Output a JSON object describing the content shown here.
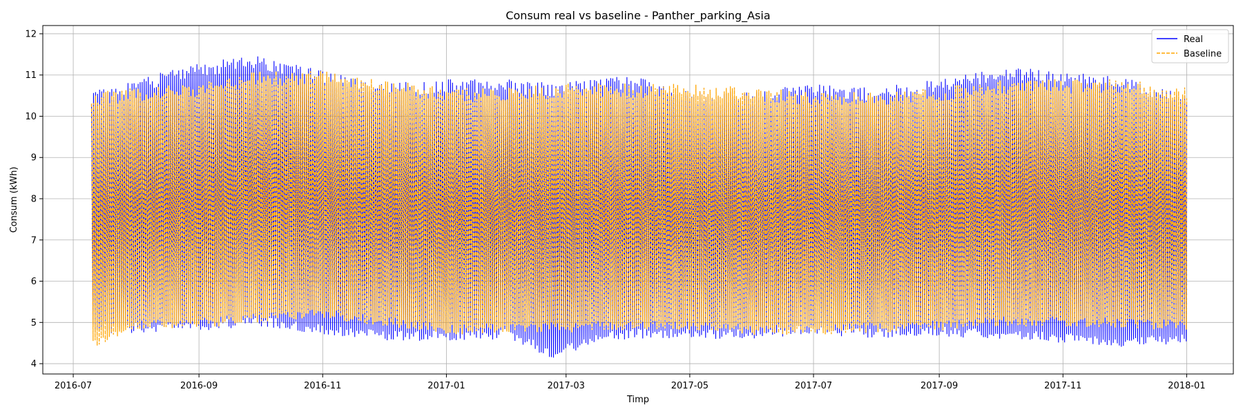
{
  "chart_data": {
    "type": "line",
    "title": "Consum real vs baseline - Panther_parking_Asia",
    "xlabel": "Timp",
    "ylabel": "Consum (kWh)",
    "x_range": [
      "2016-07-10",
      "2018-01-01"
    ],
    "xlim": [
      "2016-06-16",
      "2018-01-24"
    ],
    "ylim": [
      3.75,
      12.2
    ],
    "x_ticks": [
      "2016-07",
      "2016-09",
      "2016-11",
      "2017-01",
      "2017-03",
      "2017-05",
      "2017-07",
      "2017-09",
      "2017-11",
      "2018-01"
    ],
    "y_ticks": [
      4,
      5,
      6,
      7,
      8,
      9,
      10,
      11,
      12
    ],
    "grid": true,
    "legend_position": "top-right",
    "series": [
      {
        "name": "Real",
        "color": "#0000ff",
        "style": "solid",
        "envelope": [
          {
            "date": "2016-07-10",
            "min": 4.7,
            "max": 10.6
          },
          {
            "date": "2016-08-01",
            "min": 4.75,
            "max": 10.9
          },
          {
            "date": "2016-09-01",
            "min": 4.8,
            "max": 11.3
          },
          {
            "date": "2016-10-01",
            "min": 4.9,
            "max": 11.5
          },
          {
            "date": "2016-11-01",
            "min": 4.7,
            "max": 11.1
          },
          {
            "date": "2016-12-01",
            "min": 4.55,
            "max": 10.8
          },
          {
            "date": "2017-01-01",
            "min": 4.55,
            "max": 10.9
          },
          {
            "date": "2017-02-01",
            "min": 4.6,
            "max": 10.9
          },
          {
            "date": "2017-02-23",
            "min": 4.1,
            "max": 10.8
          },
          {
            "date": "2017-03-15",
            "min": 4.5,
            "max": 10.9
          },
          {
            "date": "2017-04-01",
            "min": 4.6,
            "max": 11.0
          },
          {
            "date": "2017-05-01",
            "min": 4.6,
            "max": 10.6
          },
          {
            "date": "2017-06-01",
            "min": 4.6,
            "max": 10.6
          },
          {
            "date": "2017-07-01",
            "min": 4.7,
            "max": 10.8
          },
          {
            "date": "2017-08-01",
            "min": 4.6,
            "max": 10.7
          },
          {
            "date": "2017-09-01",
            "min": 4.65,
            "max": 10.9
          },
          {
            "date": "2017-10-01",
            "min": 4.6,
            "max": 11.2
          },
          {
            "date": "2017-11-01",
            "min": 4.5,
            "max": 11.1
          },
          {
            "date": "2017-12-01",
            "min": 4.4,
            "max": 11.0
          },
          {
            "date": "2018-01-01",
            "min": 4.5,
            "max": 10.5
          }
        ]
      },
      {
        "name": "Baseline",
        "color": "#ffa500",
        "style": "dashed",
        "envelope": [
          {
            "date": "2016-07-10",
            "min": 4.3,
            "max": 10.6
          },
          {
            "date": "2016-08-01",
            "min": 4.8,
            "max": 10.7
          },
          {
            "date": "2016-09-01",
            "min": 4.85,
            "max": 10.8
          },
          {
            "date": "2016-10-01",
            "min": 5.0,
            "max": 11.1
          },
          {
            "date": "2016-11-01",
            "min": 5.1,
            "max": 11.1
          },
          {
            "date": "2016-12-01",
            "min": 4.9,
            "max": 10.9
          },
          {
            "date": "2017-01-01",
            "min": 4.7,
            "max": 10.7
          },
          {
            "date": "2017-02-01",
            "min": 4.75,
            "max": 10.7
          },
          {
            "date": "2017-03-01",
            "min": 4.75,
            "max": 10.8
          },
          {
            "date": "2017-04-01",
            "min": 4.8,
            "max": 10.8
          },
          {
            "date": "2017-05-01",
            "min": 4.8,
            "max": 10.8
          },
          {
            "date": "2017-06-01",
            "min": 4.7,
            "max": 10.7
          },
          {
            "date": "2017-07-01",
            "min": 4.7,
            "max": 10.6
          },
          {
            "date": "2017-08-01",
            "min": 4.75,
            "max": 10.6
          },
          {
            "date": "2017-09-01",
            "min": 4.8,
            "max": 10.7
          },
          {
            "date": "2017-10-01",
            "min": 4.9,
            "max": 10.9
          },
          {
            "date": "2017-11-01",
            "min": 4.9,
            "max": 10.9
          },
          {
            "date": "2017-12-01",
            "min": 4.85,
            "max": 10.9
          },
          {
            "date": "2018-01-01",
            "min": 4.8,
            "max": 10.7
          }
        ]
      }
    ]
  }
}
